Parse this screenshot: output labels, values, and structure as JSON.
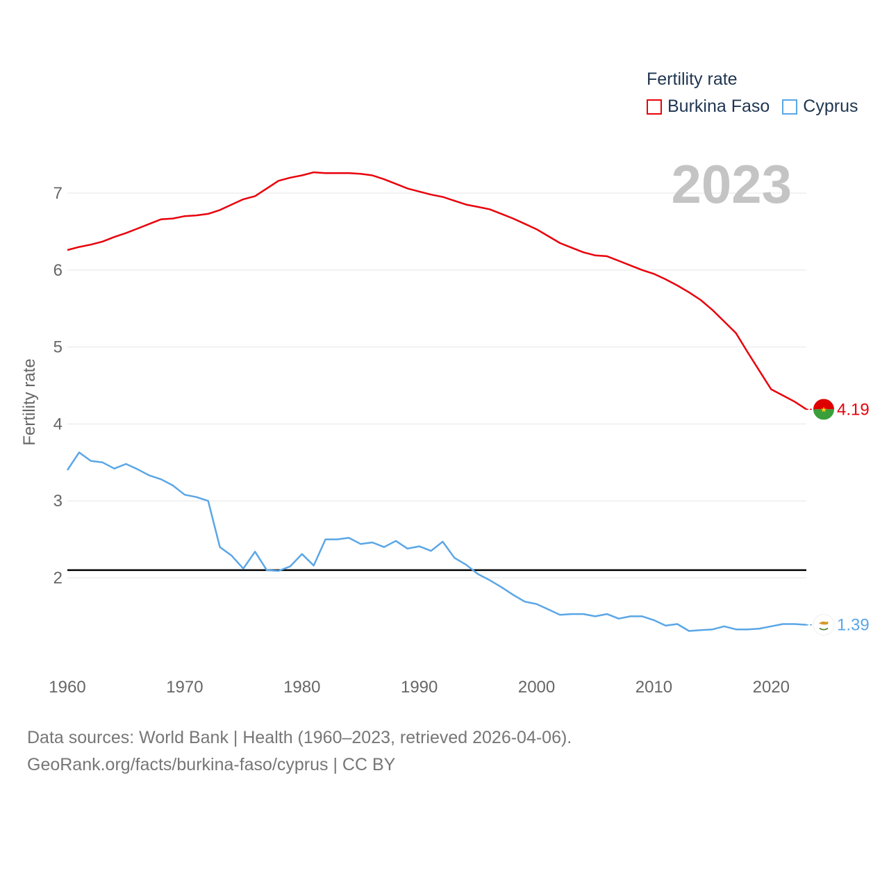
{
  "chart_data": {
    "type": "line",
    "title": "Fertility rate",
    "year_label": "2023",
    "xlabel": "",
    "ylabel": "Fertility rate",
    "xlim": [
      1960,
      2023
    ],
    "ylim": [
      1,
      7.5
    ],
    "x_ticks": [
      1960,
      1970,
      1980,
      1990,
      2000,
      2010,
      2020
    ],
    "y_ticks": [
      2,
      3,
      4,
      5,
      6,
      7
    ],
    "grid": true,
    "legend_title": "Fertility rate",
    "legend_position": "top-right",
    "reference_line": {
      "y": 2.1,
      "color": "#000000"
    },
    "years": [
      1960,
      1961,
      1962,
      1963,
      1964,
      1965,
      1966,
      1967,
      1968,
      1969,
      1970,
      1971,
      1972,
      1973,
      1974,
      1975,
      1976,
      1977,
      1978,
      1979,
      1980,
      1981,
      1982,
      1983,
      1984,
      1985,
      1986,
      1987,
      1988,
      1989,
      1990,
      1991,
      1992,
      1993,
      1994,
      1995,
      1996,
      1997,
      1998,
      1999,
      2000,
      2001,
      2002,
      2003,
      2004,
      2005,
      2006,
      2007,
      2008,
      2009,
      2010,
      2011,
      2012,
      2013,
      2014,
      2015,
      2016,
      2017,
      2018,
      2019,
      2020,
      2021,
      2022,
      2023
    ],
    "series": [
      {
        "name": "Burkina Faso",
        "color": "#e8000b",
        "end_label": "4.19",
        "flag": "burkina-faso-flag-icon",
        "values": [
          6.26,
          6.3,
          6.33,
          6.37,
          6.43,
          6.48,
          6.54,
          6.6,
          6.66,
          6.67,
          6.7,
          6.71,
          6.73,
          6.78,
          6.85,
          6.92,
          6.96,
          7.06,
          7.16,
          7.2,
          7.23,
          7.27,
          7.26,
          7.26,
          7.26,
          7.25,
          7.23,
          7.18,
          7.12,
          7.06,
          7.02,
          6.98,
          6.95,
          6.9,
          6.85,
          6.82,
          6.79,
          6.73,
          6.67,
          6.6,
          6.53,
          6.44,
          6.35,
          6.29,
          6.23,
          6.19,
          6.18,
          6.12,
          6.06,
          6.0,
          5.95,
          5.88,
          5.8,
          5.71,
          5.61,
          5.48,
          5.33,
          5.18,
          4.93,
          4.69,
          4.45,
          4.37,
          4.29,
          4.19
        ]
      },
      {
        "name": "Cyprus",
        "color": "#5aa6e6",
        "end_label": "1.39",
        "flag": "cyprus-flag-icon",
        "values": [
          3.4,
          3.63,
          3.52,
          3.5,
          3.42,
          3.48,
          3.41,
          3.33,
          3.28,
          3.2,
          3.08,
          3.05,
          3.0,
          2.4,
          2.29,
          2.12,
          2.34,
          2.1,
          2.09,
          2.15,
          2.31,
          2.16,
          2.5,
          2.5,
          2.52,
          2.44,
          2.46,
          2.4,
          2.48,
          2.38,
          2.41,
          2.35,
          2.47,
          2.26,
          2.17,
          2.05,
          1.97,
          1.88,
          1.78,
          1.69,
          1.66,
          1.59,
          1.52,
          1.53,
          1.53,
          1.5,
          1.53,
          1.47,
          1.5,
          1.5,
          1.45,
          1.38,
          1.4,
          1.31,
          1.32,
          1.33,
          1.37,
          1.33,
          1.33,
          1.34,
          1.37,
          1.4,
          1.4,
          1.39
        ]
      }
    ]
  },
  "source": {
    "line1": "Data sources: World Bank | Health (1960–2023, retrieved 2026-04-06).",
    "line2": "GeoRank.org/facts/burkina-faso/cyprus | CC BY"
  }
}
